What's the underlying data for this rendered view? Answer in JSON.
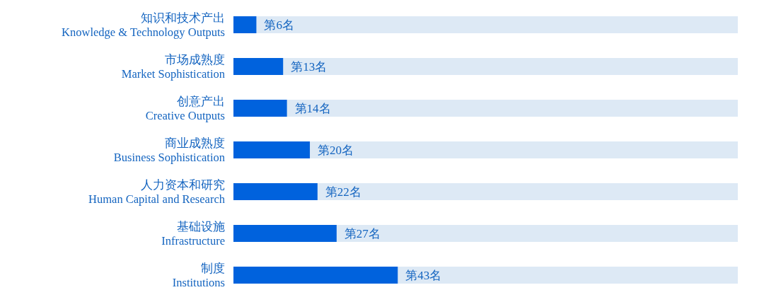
{
  "chart_data": {
    "type": "bar",
    "orientation": "horizontal",
    "categories": [
      "知识和技术产出\nKnowledge & Technology Outputs",
      "市场成熟度\nMarket Sophistication",
      "创意产出\nCreative Outputs",
      "商业成熟度\nBusiness Sophistication",
      "人力资本和研究\nHuman Capital and Research",
      "基础设施\nInfrastructure",
      "制度\nInstitutions"
    ],
    "values": [
      6,
      13,
      14,
      20,
      22,
      27,
      43
    ],
    "value_labels": [
      "第6名",
      "第13名",
      "第14名",
      "第20名",
      "第22名",
      "第27名",
      "第43名"
    ],
    "color": "#0062dd",
    "xlim": [
      0,
      132
    ],
    "tick_labels": "y"
  }
}
